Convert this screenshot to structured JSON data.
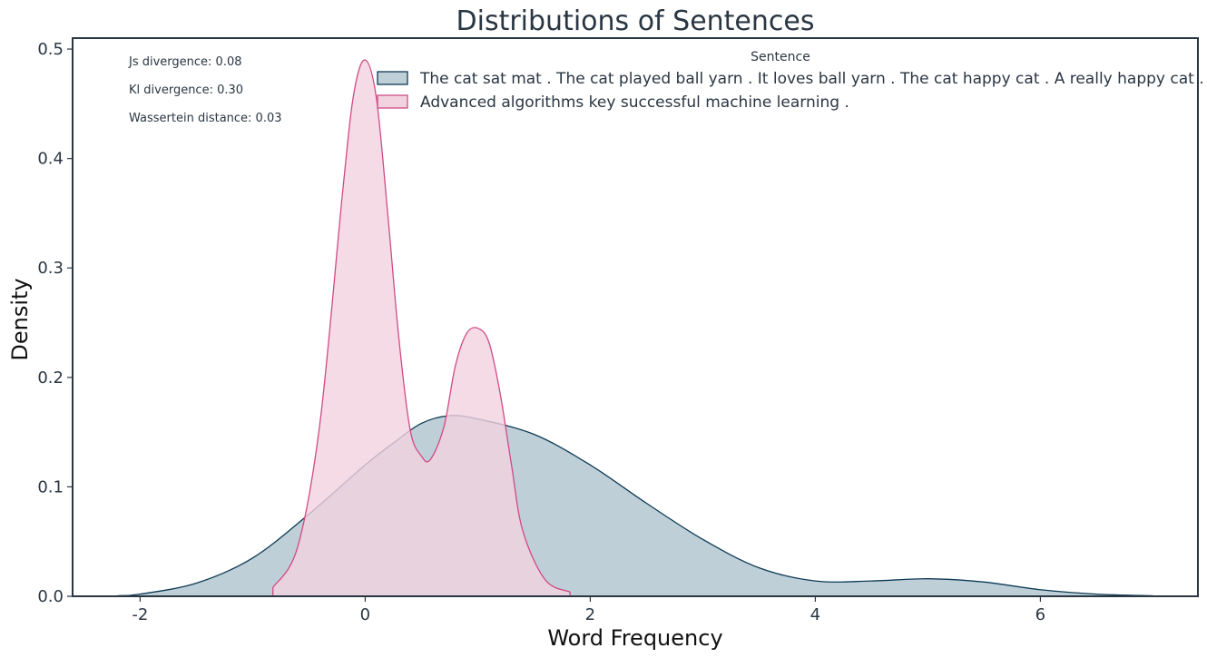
{
  "chart_data": {
    "type": "area",
    "title": "Distributions of Sentences",
    "xlabel": "Word Frequency",
    "ylabel": "Density",
    "xlim": [
      -2.6,
      7.4
    ],
    "ylim": [
      0,
      0.51
    ],
    "x_ticks": [
      {
        "value": -2,
        "label": "-2"
      },
      {
        "value": 0,
        "label": "0"
      },
      {
        "value": 2,
        "label": "2"
      },
      {
        "value": 4,
        "label": "4"
      },
      {
        "value": 6,
        "label": "6"
      }
    ],
    "y_ticks": [
      {
        "value": 0.0,
        "label": "0.0"
      },
      {
        "value": 0.1,
        "label": "0.1"
      },
      {
        "value": 0.2,
        "label": "0.2"
      },
      {
        "value": 0.3,
        "label": "0.3"
      },
      {
        "value": 0.4,
        "label": "0.4"
      },
      {
        "value": 0.5,
        "label": "0.5"
      }
    ],
    "grid": false,
    "legend": {
      "title": "Sentence",
      "placement": "top-right"
    },
    "annotations": [
      "Js divergence: 0.08",
      "Kl divergence: 0.30",
      "Wassertein distance: 0.03"
    ],
    "series": [
      {
        "name": "The cat sat mat . The cat played ball yarn . It loves ball yarn . The cat happy cat . A really happy cat .",
        "fill_color": "#bfcfd8",
        "line_color": "#0d3b55",
        "x": [
          -2.2,
          -2.0,
          -1.5,
          -1.0,
          -0.5,
          0.0,
          0.25,
          0.5,
          0.75,
          1.0,
          1.5,
          2.0,
          2.5,
          3.0,
          3.5,
          4.0,
          4.5,
          5.0,
          5.5,
          6.0,
          6.5,
          7.0
        ],
        "y": [
          0.0005,
          0.002,
          0.012,
          0.035,
          0.075,
          0.12,
          0.14,
          0.158,
          0.165,
          0.162,
          0.148,
          0.12,
          0.085,
          0.052,
          0.026,
          0.014,
          0.014,
          0.016,
          0.013,
          0.006,
          0.002,
          0.0005
        ]
      },
      {
        "name": "Advanced algorithms key successful machine learning .",
        "fill_color": "#f3d2e0",
        "line_color": "#d04a85",
        "x": [
          -0.82,
          -0.6,
          -0.4,
          -0.2,
          -0.1,
          0.0,
          0.1,
          0.2,
          0.3,
          0.4,
          0.5,
          0.58,
          0.7,
          0.8,
          0.9,
          1.0,
          1.1,
          1.2,
          1.3,
          1.4,
          1.6,
          1.82
        ],
        "y": [
          0.008,
          0.045,
          0.16,
          0.37,
          0.46,
          0.49,
          0.455,
          0.35,
          0.235,
          0.152,
          0.128,
          0.125,
          0.155,
          0.21,
          0.24,
          0.245,
          0.232,
          0.185,
          0.12,
          0.06,
          0.015,
          0.004
        ]
      }
    ]
  }
}
